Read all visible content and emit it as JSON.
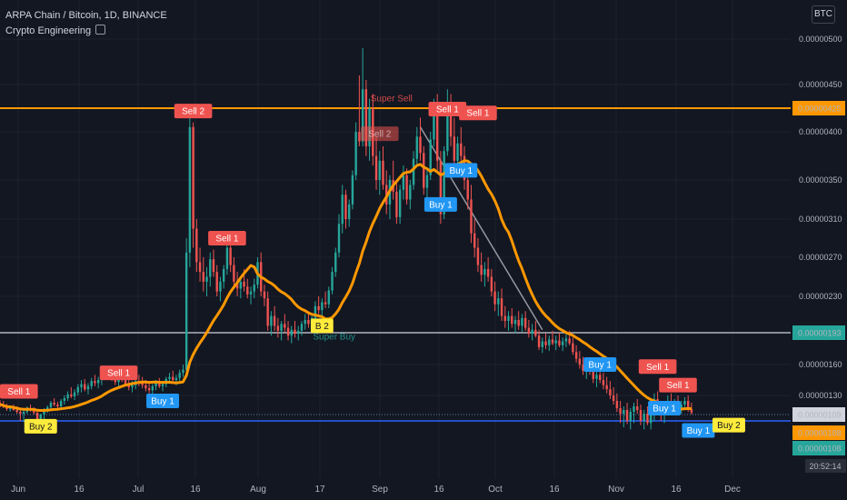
{
  "header": {
    "title": "ARPA Chain / Bitcoin, 1D, BINANCE",
    "indicator": "Crypto Engineering",
    "indicator_icon": "eye-icon",
    "currency_button": "BTC"
  },
  "clock": "20:52:14",
  "chart_data": {
    "type": "candlestick",
    "y_ticks": [
      "0.00000500",
      "0.00000450",
      "0.00000400",
      "0.00000350",
      "0.00000310",
      "0.00000270",
      "0.00000230",
      "0.00000160",
      "0.00000130"
    ],
    "x_ticks": [
      "Jun",
      "16",
      "Jul",
      "16",
      "Aug",
      "17",
      "Sep",
      "16",
      "Oct",
      "16",
      "Nov",
      "16",
      "Dec"
    ],
    "price_labels": [
      {
        "value": "0.00000425",
        "line": "orange",
        "color": "#ff9800",
        "text_color": "#131722"
      },
      {
        "value": "0.00000193",
        "line": "white",
        "color": "#26a69a",
        "text_color": "#ffffff"
      },
      {
        "value": "0.00000109",
        "line": "dotted-blue",
        "color": "#d1d4dc",
        "text_color": "#131722"
      },
      {
        "value": "0.00000108",
        "line": "orange-ma",
        "color": "#ff9800",
        "text_color": "#131722"
      },
      {
        "value": "0.00000108",
        "line": "blue",
        "color": "#26a69a",
        "text_color": "#ffffff"
      }
    ],
    "horizontal_lines": [
      {
        "name": "resistance",
        "value": 4.25e-06,
        "color": "#ff9800"
      },
      {
        "name": "level",
        "value": 1.93e-06,
        "color": "#d1d4dc"
      },
      {
        "name": "support",
        "value": 1.08e-06,
        "color": "#2962ff"
      }
    ],
    "signals": [
      {
        "text": "Sell 1",
        "type": "sell",
        "day": 0
      },
      {
        "text": "Buy 2",
        "type": "buy2",
        "day": 12
      },
      {
        "text": "Sell 1",
        "type": "sell",
        "day": 35
      },
      {
        "text": "Buy 1",
        "type": "buy",
        "day": 48
      },
      {
        "text": "Sell 2",
        "type": "sell",
        "day": 57
      },
      {
        "text": "Sell 1",
        "type": "sell",
        "day": 67
      },
      {
        "text": "B 2",
        "type": "buy2",
        "day": 95
      },
      {
        "text": "Sell 2",
        "type": "sell-faded",
        "day": 112
      },
      {
        "text": "Sell 1",
        "type": "sell",
        "day": 132
      },
      {
        "text": "Sell 1",
        "type": "sell",
        "day": 141
      },
      {
        "text": "Buy 1",
        "type": "buy",
        "day": 136
      },
      {
        "text": "Buy 1",
        "type": "buy",
        "day": 130
      },
      {
        "text": "Buy 1",
        "type": "buy",
        "day": 177
      },
      {
        "text": "Sell 1",
        "type": "sell",
        "day": 194
      },
      {
        "text": "Sell 1",
        "type": "sell",
        "day": 200
      },
      {
        "text": "Buy 1",
        "type": "buy",
        "day": 196
      },
      {
        "text": "Buy 1",
        "type": "buy",
        "day": 206
      },
      {
        "text": "Buy 2",
        "type": "buy2",
        "day": 215
      }
    ],
    "annotations": [
      {
        "text": "Super Sell",
        "color": "#ef5350",
        "day": 112
      },
      {
        "text": "Super Buy",
        "color": "#26a69a",
        "day": 95
      }
    ],
    "candles": [
      [
        1.22,
        1.25,
        1.17,
        1.2
      ],
      [
        1.2,
        1.24,
        1.16,
        1.18
      ],
      [
        1.18,
        1.21,
        1.13,
        1.15
      ],
      [
        1.15,
        1.19,
        1.12,
        1.17
      ],
      [
        1.17,
        1.2,
        1.13,
        1.14
      ],
      [
        1.14,
        1.18,
        1.1,
        1.12
      ],
      [
        1.12,
        1.16,
        1.08,
        1.1
      ],
      [
        1.1,
        1.14,
        1.07,
        1.12
      ],
      [
        1.12,
        1.18,
        1.1,
        1.16
      ],
      [
        1.16,
        1.2,
        1.12,
        1.14
      ],
      [
        1.14,
        1.17,
        1.09,
        1.11
      ],
      [
        1.11,
        1.13,
        1.05,
        1.07
      ],
      [
        1.07,
        1.1,
        1.04,
        1.09
      ],
      [
        1.09,
        1.16,
        1.07,
        1.14
      ],
      [
        1.14,
        1.19,
        1.11,
        1.17
      ],
      [
        1.17,
        1.24,
        1.15,
        1.22
      ],
      [
        1.22,
        1.27,
        1.18,
        1.2
      ],
      [
        1.2,
        1.23,
        1.15,
        1.18
      ],
      [
        1.18,
        1.26,
        1.16,
        1.24
      ],
      [
        1.24,
        1.3,
        1.2,
        1.27
      ],
      [
        1.27,
        1.34,
        1.24,
        1.31
      ],
      [
        1.31,
        1.38,
        1.27,
        1.29
      ],
      [
        1.29,
        1.36,
        1.25,
        1.33
      ],
      [
        1.33,
        1.41,
        1.3,
        1.38
      ],
      [
        1.38,
        1.45,
        1.33,
        1.41
      ],
      [
        1.41,
        1.46,
        1.34,
        1.36
      ],
      [
        1.36,
        1.42,
        1.31,
        1.39
      ],
      [
        1.39,
        1.47,
        1.36,
        1.44
      ],
      [
        1.44,
        1.5,
        1.39,
        1.42
      ],
      [
        1.42,
        1.48,
        1.37,
        1.45
      ],
      [
        1.45,
        1.52,
        1.4,
        1.48
      ],
      [
        1.48,
        1.56,
        1.45,
        1.53
      ],
      [
        1.53,
        1.58,
        1.47,
        1.5
      ],
      [
        1.5,
        1.55,
        1.44,
        1.46
      ],
      [
        1.46,
        1.51,
        1.4,
        1.43
      ],
      [
        1.43,
        1.49,
        1.38,
        1.47
      ],
      [
        1.47,
        1.53,
        1.43,
        1.45
      ],
      [
        1.45,
        1.5,
        1.39,
        1.41
      ],
      [
        1.41,
        1.46,
        1.35,
        1.38
      ],
      [
        1.38,
        1.44,
        1.33,
        1.4
      ],
      [
        1.4,
        1.47,
        1.36,
        1.44
      ],
      [
        1.44,
        1.5,
        1.39,
        1.42
      ],
      [
        1.42,
        1.48,
        1.37,
        1.4
      ],
      [
        1.4,
        1.45,
        1.34,
        1.37
      ],
      [
        1.37,
        1.42,
        1.32,
        1.35
      ],
      [
        1.35,
        1.41,
        1.3,
        1.39
      ],
      [
        1.39,
        1.45,
        1.35,
        1.42
      ],
      [
        1.42,
        1.47,
        1.37,
        1.39
      ],
      [
        1.39,
        1.44,
        1.34,
        1.41
      ],
      [
        1.41,
        1.48,
        1.38,
        1.46
      ],
      [
        1.46,
        1.52,
        1.42,
        1.48
      ],
      [
        1.48,
        1.54,
        1.43,
        1.45
      ],
      [
        1.45,
        1.5,
        1.4,
        1.47
      ],
      [
        1.47,
        1.55,
        1.44,
        1.52
      ],
      [
        1.52,
        1.6,
        1.48,
        1.55
      ],
      [
        1.55,
        2.9,
        1.52,
        2.75
      ],
      [
        2.75,
        4.25,
        2.6,
        4.05
      ],
      [
        4.05,
        4.1,
        2.8,
        3.0
      ],
      [
        3.0,
        3.1,
        2.55,
        2.65
      ],
      [
        2.65,
        2.8,
        2.45,
        2.55
      ],
      [
        2.55,
        2.7,
        2.35,
        2.45
      ],
      [
        2.45,
        2.6,
        2.3,
        2.5
      ],
      [
        2.5,
        2.75,
        2.4,
        2.68
      ],
      [
        2.68,
        2.78,
        2.5,
        2.55
      ],
      [
        2.55,
        2.62,
        2.3,
        2.35
      ],
      [
        2.35,
        2.5,
        2.25,
        2.45
      ],
      [
        2.45,
        2.62,
        2.38,
        2.58
      ],
      [
        2.58,
        2.85,
        2.52,
        2.8
      ],
      [
        2.8,
        2.9,
        2.55,
        2.62
      ],
      [
        2.62,
        2.7,
        2.4,
        2.45
      ],
      [
        2.45,
        2.55,
        2.3,
        2.38
      ],
      [
        2.38,
        2.5,
        2.28,
        2.45
      ],
      [
        2.45,
        2.58,
        2.35,
        2.4
      ],
      [
        2.4,
        2.48,
        2.28,
        2.32
      ],
      [
        2.32,
        2.4,
        2.22,
        2.35
      ],
      [
        2.35,
        2.48,
        2.28,
        2.42
      ],
      [
        2.42,
        2.7,
        2.38,
        2.65
      ],
      [
        2.65,
        2.75,
        2.3,
        2.35
      ],
      [
        2.35,
        2.42,
        2.2,
        2.28
      ],
      [
        2.28,
        2.35,
        1.95,
        2.0
      ],
      [
        2.0,
        2.15,
        1.9,
        2.1
      ],
      [
        2.1,
        2.2,
        1.95,
        2.0
      ],
      [
        2.0,
        2.08,
        1.88,
        1.95
      ],
      [
        1.95,
        2.05,
        1.85,
        2.02
      ],
      [
        2.02,
        2.12,
        1.94,
        1.98
      ],
      [
        1.98,
        2.05,
        1.85,
        1.9
      ],
      [
        1.9,
        2.0,
        1.82,
        1.96
      ],
      [
        1.96,
        2.05,
        1.88,
        1.92
      ],
      [
        1.92,
        2.0,
        1.85,
        1.95
      ],
      [
        1.95,
        2.05,
        1.9,
        2.02
      ],
      [
        2.02,
        2.12,
        1.96,
        2.06
      ],
      [
        2.06,
        2.15,
        1.98,
        2.02
      ],
      [
        2.02,
        2.1,
        1.95,
        2.08
      ],
      [
        2.08,
        2.25,
        2.04,
        2.2
      ],
      [
        2.2,
        2.3,
        2.12,
        2.16
      ],
      [
        2.16,
        2.28,
        2.1,
        2.24
      ],
      [
        2.24,
        2.35,
        2.18,
        2.22
      ],
      [
        2.22,
        2.4,
        2.18,
        2.36
      ],
      [
        2.36,
        2.6,
        2.32,
        2.55
      ],
      [
        2.55,
        2.8,
        2.5,
        2.75
      ],
      [
        2.75,
        3.15,
        2.7,
        3.05
      ],
      [
        3.05,
        3.45,
        2.95,
        3.35
      ],
      [
        3.35,
        3.4,
        3.0,
        3.1
      ],
      [
        3.1,
        3.3,
        3.02,
        3.25
      ],
      [
        3.25,
        3.6,
        3.2,
        3.55
      ],
      [
        3.55,
        4.1,
        3.5,
        4.0
      ],
      [
        4.0,
        4.6,
        3.85,
        3.9
      ],
      [
        3.9,
        4.9,
        3.85,
        4.45
      ],
      [
        4.45,
        4.55,
        3.75,
        3.85
      ],
      [
        3.85,
        4.35,
        3.7,
        4.25
      ],
      [
        4.25,
        4.4,
        3.65,
        3.75
      ],
      [
        3.75,
        3.95,
        3.4,
        3.5
      ],
      [
        3.5,
        3.8,
        3.35,
        3.7
      ],
      [
        3.7,
        3.85,
        3.4,
        3.45
      ],
      [
        3.45,
        3.6,
        3.15,
        3.25
      ],
      [
        3.25,
        3.55,
        3.1,
        3.5
      ],
      [
        3.5,
        3.7,
        3.3,
        3.38
      ],
      [
        3.38,
        3.5,
        3.05,
        3.12
      ],
      [
        3.12,
        3.45,
        3.05,
        3.4
      ],
      [
        3.4,
        3.65,
        3.3,
        3.55
      ],
      [
        3.55,
        3.62,
        3.25,
        3.3
      ],
      [
        3.3,
        3.5,
        3.2,
        3.45
      ],
      [
        3.45,
        3.8,
        3.4,
        3.72
      ],
      [
        3.72,
        4.05,
        3.65,
        3.95
      ],
      [
        3.95,
        4.15,
        3.7,
        3.78
      ],
      [
        3.78,
        3.85,
        3.35,
        3.42
      ],
      [
        3.42,
        3.6,
        3.3,
        3.55
      ],
      [
        3.55,
        4.0,
        3.5,
        3.92
      ],
      [
        3.92,
        4.35,
        3.85,
        4.25
      ],
      [
        4.25,
        4.4,
        3.6,
        3.7
      ],
      [
        3.7,
        3.8,
        3.05,
        3.15
      ],
      [
        3.15,
        3.85,
        3.1,
        3.8
      ],
      [
        3.8,
        4.45,
        3.75,
        4.3
      ],
      [
        4.3,
        4.4,
        3.85,
        3.95
      ],
      [
        3.95,
        4.15,
        3.6,
        3.7
      ],
      [
        3.7,
        3.95,
        3.55,
        3.88
      ],
      [
        3.88,
        4.05,
        3.7,
        3.75
      ],
      [
        3.75,
        3.85,
        3.4,
        3.5
      ],
      [
        3.5,
        3.65,
        3.2,
        3.3
      ],
      [
        3.3,
        3.45,
        2.85,
        2.95
      ],
      [
        2.95,
        3.1,
        2.7,
        2.8
      ],
      [
        2.8,
        2.9,
        2.55,
        2.62
      ],
      [
        2.62,
        2.75,
        2.45,
        2.52
      ],
      [
        2.52,
        2.65,
        2.4,
        2.58
      ],
      [
        2.58,
        2.7,
        2.45,
        2.5
      ],
      [
        2.5,
        2.58,
        2.3,
        2.35
      ],
      [
        2.35,
        2.45,
        2.15,
        2.22
      ],
      [
        2.22,
        2.35,
        2.1,
        2.28
      ],
      [
        2.28,
        2.38,
        2.05,
        2.1
      ],
      [
        2.1,
        2.2,
        1.98,
        2.05
      ],
      [
        2.05,
        2.15,
        1.95,
        2.1
      ],
      [
        2.1,
        2.18,
        1.98,
        2.02
      ],
      [
        2.02,
        2.1,
        1.92,
        2.06
      ],
      [
        2.06,
        2.15,
        1.96,
        2.0
      ],
      [
        2.0,
        2.12,
        1.94,
        2.08
      ],
      [
        2.08,
        2.15,
        1.95,
        1.98
      ],
      [
        1.98,
        2.06,
        1.88,
        1.92
      ],
      [
        1.92,
        2.02,
        1.85,
        1.96
      ],
      [
        1.96,
        2.05,
        1.88,
        1.9
      ],
      [
        1.9,
        1.96,
        1.75,
        1.78
      ],
      [
        1.78,
        1.88,
        1.72,
        1.84
      ],
      [
        1.84,
        1.92,
        1.76,
        1.8
      ],
      [
        1.8,
        1.9,
        1.74,
        1.86
      ],
      [
        1.86,
        1.95,
        1.8,
        1.82
      ],
      [
        1.82,
        1.9,
        1.75,
        1.85
      ],
      [
        1.85,
        1.93,
        1.78,
        1.8
      ],
      [
        1.8,
        1.88,
        1.74,
        1.84
      ],
      [
        1.84,
        1.92,
        1.78,
        1.87
      ],
      [
        1.87,
        1.95,
        1.8,
        1.82
      ],
      [
        1.82,
        1.88,
        1.7,
        1.73
      ],
      [
        1.73,
        1.8,
        1.62,
        1.66
      ],
      [
        1.66,
        1.74,
        1.56,
        1.6
      ],
      [
        1.6,
        1.68,
        1.5,
        1.54
      ],
      [
        1.54,
        1.62,
        1.46,
        1.58
      ],
      [
        1.58,
        1.66,
        1.5,
        1.53
      ],
      [
        1.53,
        1.6,
        1.42,
        1.46
      ],
      [
        1.46,
        1.55,
        1.38,
        1.5
      ],
      [
        1.5,
        1.58,
        1.42,
        1.45
      ],
      [
        1.45,
        1.52,
        1.36,
        1.4
      ],
      [
        1.4,
        1.48,
        1.32,
        1.36
      ],
      [
        1.36,
        1.44,
        1.26,
        1.3
      ],
      [
        1.3,
        1.38,
        1.2,
        1.24
      ],
      [
        1.24,
        1.32,
        1.12,
        1.16
      ],
      [
        1.16,
        1.24,
        1.06,
        1.1
      ],
      [
        1.1,
        1.18,
        1.02,
        1.14
      ],
      [
        1.14,
        1.22,
        1.05,
        1.08
      ],
      [
        1.08,
        1.16,
        1.0,
        1.12
      ],
      [
        1.12,
        1.22,
        1.06,
        1.18
      ],
      [
        1.18,
        1.26,
        1.1,
        1.14
      ],
      [
        1.14,
        1.2,
        1.04,
        1.08
      ],
      [
        1.08,
        1.14,
        1.0,
        1.1
      ],
      [
        1.1,
        1.18,
        1.04,
        1.06
      ],
      [
        1.06,
        1.14,
        1.0,
        1.12
      ],
      [
        1.12,
        1.32,
        1.08,
        1.26
      ],
      [
        1.26,
        1.34,
        1.12,
        1.16
      ],
      [
        1.16,
        1.24,
        1.08,
        1.12
      ],
      [
        1.12,
        1.2,
        1.06,
        1.18
      ],
      [
        1.18,
        1.3,
        1.12,
        1.24
      ],
      [
        1.24,
        1.32,
        1.15,
        1.18
      ],
      [
        1.18,
        1.26,
        1.1,
        1.22
      ],
      [
        1.22,
        1.3,
        1.14,
        1.16
      ],
      [
        1.16,
        1.24,
        1.1,
        1.2
      ],
      [
        1.2,
        1.28,
        1.14,
        1.24
      ],
      [
        1.24,
        1.3,
        1.12,
        1.15
      ],
      [
        1.15,
        1.22,
        1.09,
        1.11
      ]
    ]
  }
}
